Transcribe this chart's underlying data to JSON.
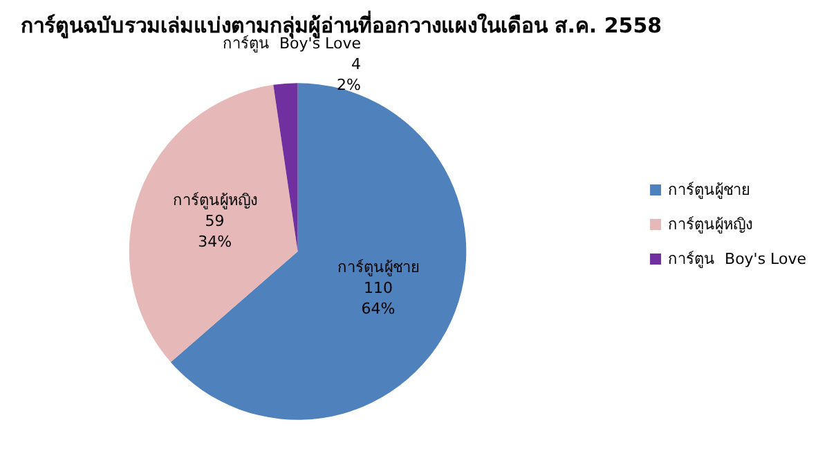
{
  "chart_data": {
    "type": "pie",
    "title": "การ์ตูนฉบับรวมเล่มแบ่งตามกลุ่มผู้อ่านที่ออกวางแผงในเดือน ส.ค. 2558",
    "categories": [
      "การ์ตูนผู้ชาย",
      "การ์ตูนผู้หญิง",
      "การ์ตูน  Boy's Love"
    ],
    "values": [
      110,
      59,
      4
    ],
    "value_labels": [
      "110\n64%",
      "59\n34%",
      "4\n2%"
    ],
    "colors": [
      "#4f81bd",
      "#e6b9b8",
      "#7030a0"
    ],
    "legend": "right"
  }
}
